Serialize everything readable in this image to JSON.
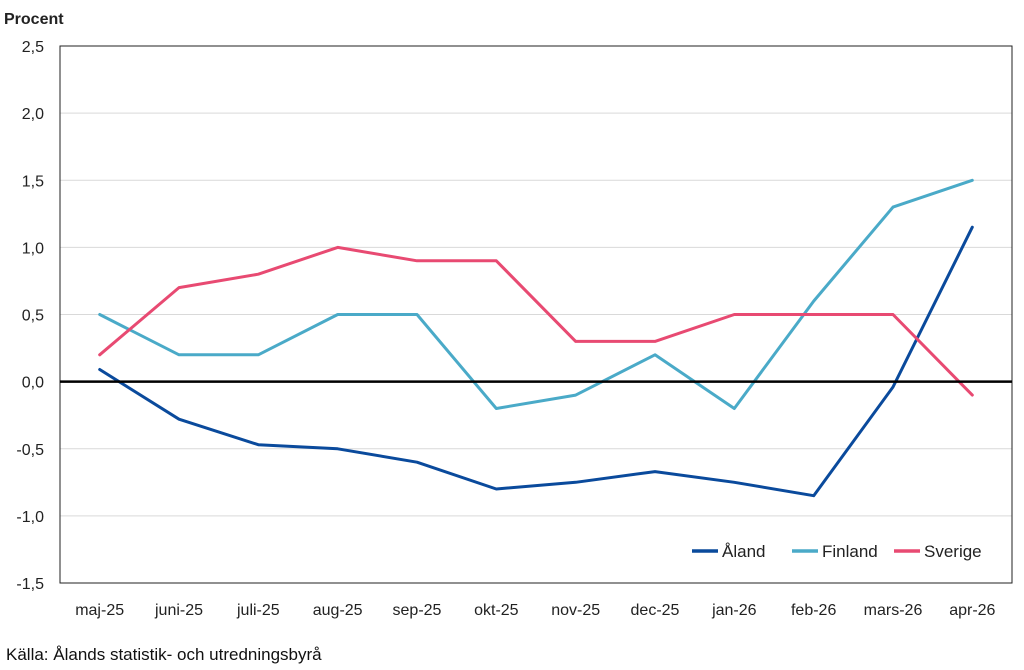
{
  "chart_data": {
    "type": "line",
    "ylabel": "Procent",
    "categories": [
      "maj-25",
      "juni-25",
      "juli-25",
      "aug-25",
      "sep-25",
      "okt-25",
      "nov-25",
      "dec-25",
      "jan-26",
      "feb-26",
      "mars-26",
      "apr-26"
    ],
    "ylim": [
      -1.5,
      2.5
    ],
    "yticks": [
      "2,5",
      "2,0",
      "1,5",
      "1,0",
      "0,5",
      "0,0",
      "-0,5",
      "-1,0",
      "-1,5"
    ],
    "grid": true,
    "legend_position": "bottom-right",
    "series": [
      {
        "name": "Åland",
        "color": "#0a4a9c",
        "values": [
          0.09,
          -0.28,
          -0.47,
          -0.5,
          -0.6,
          -0.8,
          -0.75,
          -0.67,
          -0.75,
          -0.85,
          -0.04,
          1.15
        ]
      },
      {
        "name": "Finland",
        "color": "#4aaac8",
        "values": [
          0.5,
          0.2,
          0.2,
          0.5,
          0.5,
          -0.2,
          -0.1,
          0.2,
          -0.2,
          0.6,
          1.3,
          1.5
        ]
      },
      {
        "name": "Sverige",
        "color": "#e84a72",
        "values": [
          0.2,
          0.7,
          0.8,
          1.0,
          0.9,
          0.9,
          0.3,
          0.3,
          0.5,
          0.5,
          0.5,
          -0.1
        ]
      }
    ]
  },
  "source": "Källa: Ålands statistik- och utredningsbyrå"
}
